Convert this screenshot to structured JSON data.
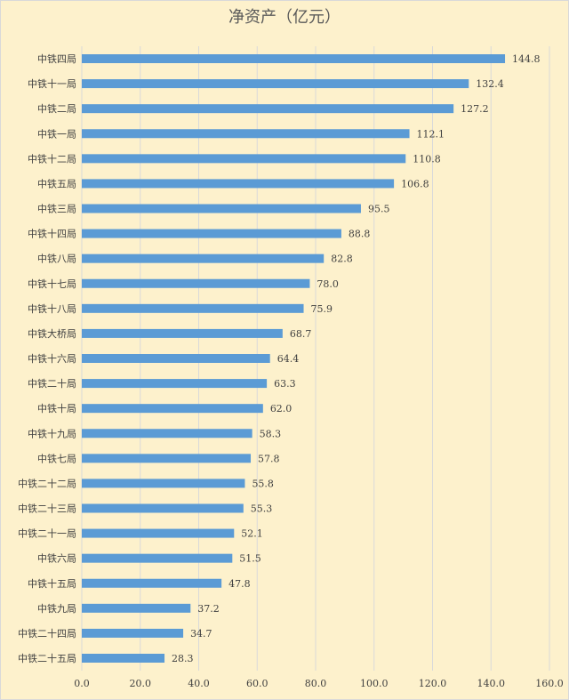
{
  "chart_data": {
    "type": "bar",
    "orientation": "horizontal",
    "title": "净资产（亿元）",
    "categories": [
      "中铁四局",
      "中铁十一局",
      "中铁二局",
      "中铁一局",
      "中铁十二局",
      "中铁五局",
      "中铁三局",
      "中铁十四局",
      "中铁八局",
      "中铁十七局",
      "中铁十八局",
      "中铁大桥局",
      "中铁十六局",
      "中铁二十局",
      "中铁十局",
      "中铁十九局",
      "中铁七局",
      "中铁二十二局",
      "中铁二十三局",
      "中铁二十一局",
      "中铁六局",
      "中铁十五局",
      "中铁九局",
      "中铁二十四局",
      "中铁二十五局"
    ],
    "values": [
      144.8,
      132.4,
      127.2,
      112.1,
      110.8,
      106.8,
      95.5,
      88.8,
      82.8,
      78.0,
      75.9,
      68.7,
      64.4,
      63.3,
      62.0,
      58.3,
      57.8,
      55.8,
      55.3,
      52.1,
      51.5,
      47.8,
      37.2,
      34.7,
      28.3
    ],
    "value_labels": [
      "144.8",
      "132.4",
      "127.2",
      "112.1",
      "110.8",
      "106.8",
      "95.5",
      "88.8",
      "82.8",
      "78.0",
      "75.9",
      "68.7",
      "64.4",
      "63.3",
      "62.0",
      "58.3",
      "57.8",
      "55.8",
      "55.3",
      "52.1",
      "51.5",
      "47.8",
      "37.2",
      "34.7",
      "28.3"
    ],
    "color": "#5b9bd5",
    "xlim": [
      0,
      160
    ],
    "xticks": [
      {
        "value": 0,
        "label": "0.0"
      },
      {
        "value": 20,
        "label": "20.0"
      },
      {
        "value": 40,
        "label": "40.0"
      },
      {
        "value": 60,
        "label": "60.0"
      },
      {
        "value": 80,
        "label": "80.0"
      },
      {
        "value": 100,
        "label": "100.0"
      },
      {
        "value": 120,
        "label": "120.0"
      },
      {
        "value": 140,
        "label": "140.0"
      },
      {
        "value": 160,
        "label": "160.0"
      }
    ],
    "grid": true
  }
}
